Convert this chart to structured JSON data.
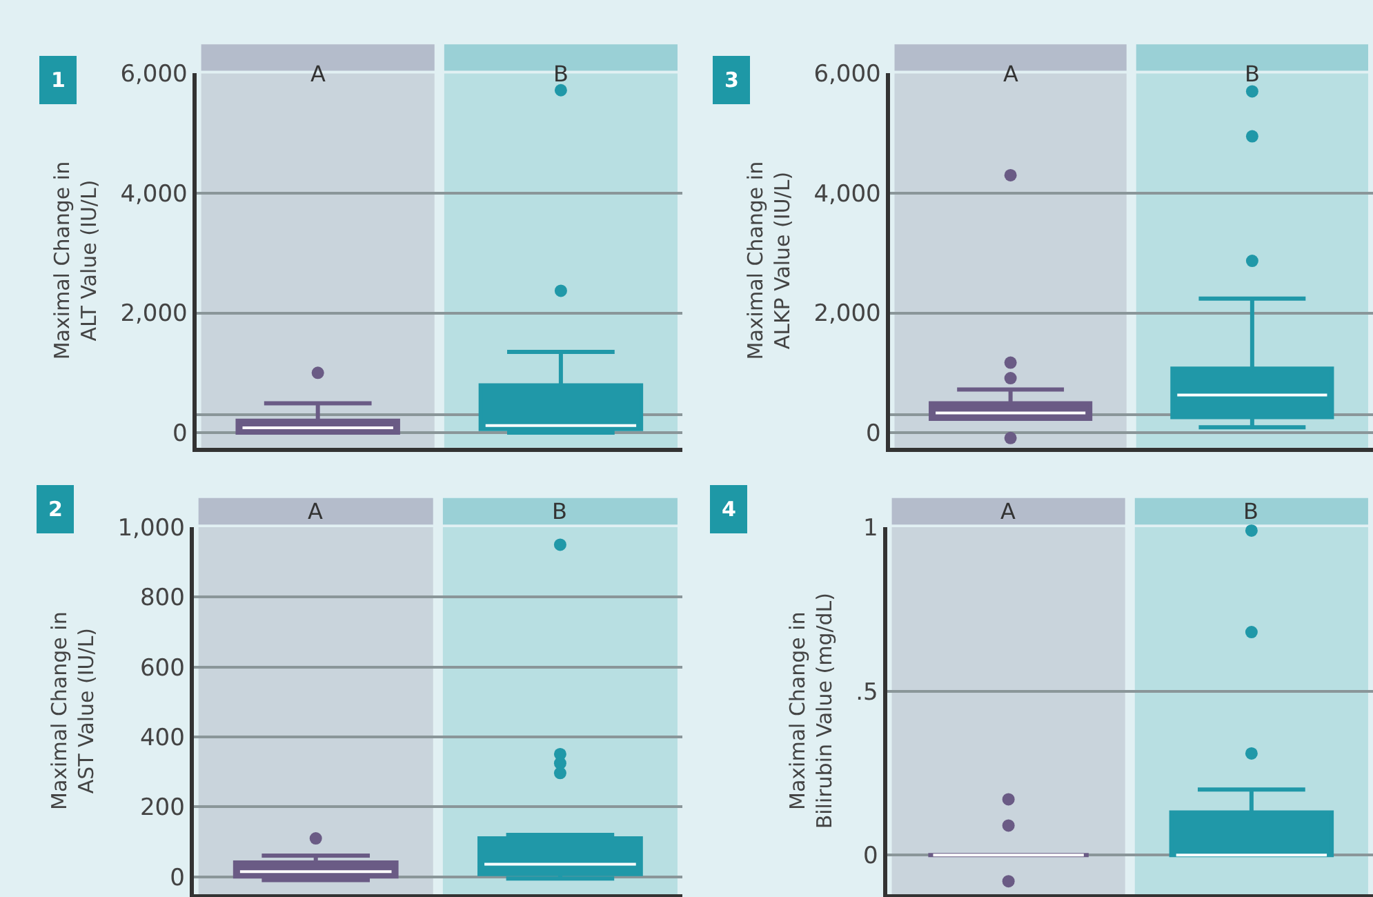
{
  "chart_data": [
    {
      "type": "box",
      "ylabel": "Maximal Change in ALT Value (IU/L)",
      "annotations": [
        "1"
      ],
      "categories": [
        "A",
        "B"
      ],
      "colors": [
        "#6a5b85",
        "#2098a8"
      ],
      "ylim": [
        -250,
        6000
      ],
      "yticks": [
        0,
        {
          "value": 2000,
          "label": "2,000"
        },
        {
          "value": 4000,
          "label": "4,000"
        },
        {
          "value": 6000,
          "label": "6,000"
        }
      ],
      "grid": "y",
      "ref_lines": [
        {
          "axis": "y",
          "value": 300
        }
      ],
      "boxes": [
        {
          "low": 0,
          "q1": 0,
          "median": 80,
          "q3": 200,
          "high": 490,
          "outliers": [
            1000
          ]
        },
        {
          "low": 0,
          "q1": 60,
          "median": 120,
          "q3": 790,
          "high": 1350,
          "outliers": [
            2370,
            5720
          ]
        }
      ]
    },
    {
      "type": "box",
      "ylabel": "Maximal Change in ALKP Value (IU/L)",
      "annotations": [
        "3"
      ],
      "categories": [
        "A",
        "B"
      ],
      "colors": [
        "#6a5b85",
        "#2098a8"
      ],
      "ylim": [
        -250,
        6000
      ],
      "yticks": [
        0,
        {
          "value": 2000,
          "label": "2,000"
        },
        {
          "value": 4000,
          "label": "4,000"
        },
        {
          "value": 6000,
          "label": "6,000"
        }
      ],
      "grid": "y",
      "ref_lines": [
        {
          "axis": "y",
          "value": 300
        }
      ],
      "boxes": [
        {
          "low": 230,
          "q1": 230,
          "median": 330,
          "q3": 490,
          "high": 720,
          "outliers": [
            -90,
            910,
            1170,
            4300
          ]
        },
        {
          "low": 90,
          "q1": 260,
          "median": 630,
          "q3": 1070,
          "high": 2240,
          "outliers": [
            2870,
            4950,
            5700
          ]
        }
      ]
    },
    {
      "type": "box",
      "ylabel": "Maximal Change in AST Value (IU/L)",
      "annotations": [
        "2"
      ],
      "categories": [
        "A",
        "B"
      ],
      "colors": [
        "#6a5b85",
        "#2098a8"
      ],
      "ylim": [
        -50,
        1000
      ],
      "yticks": [
        0,
        200,
        400,
        600,
        800,
        {
          "value": 1000,
          "label": "1,000"
        }
      ],
      "grid": "y",
      "boxes": [
        {
          "low": -9,
          "q1": 1,
          "median": 15,
          "q3": 41,
          "high": 61,
          "outliers": [
            110
          ]
        },
        {
          "low": -5,
          "q1": 8,
          "median": 36,
          "q3": 110,
          "high": 120,
          "outliers": [
            297,
            325,
            351,
            950
          ]
        }
      ]
    },
    {
      "type": "box",
      "ylabel": "Maximal Change in Bilirubin Value (mg/dL)",
      "annotations": [
        "4"
      ],
      "categories": [
        "A",
        "B"
      ],
      "colors": [
        "#6a5b85",
        "#2098a8"
      ],
      "ylim": [
        -0.12,
        1
      ],
      "yticks": [
        0,
        {
          "value": 0.5,
          "label": ".5"
        },
        1
      ],
      "grid": "y",
      "boxes": [
        {
          "low": 0,
          "q1": 0,
          "median": 0,
          "q3": 0,
          "high": 0,
          "outliers": [
            -0.08,
            0.09,
            0.17
          ]
        },
        {
          "low": 0,
          "q1": 0,
          "median": 0,
          "q3": 0.13,
          "high": 0.2,
          "outliers": [
            0.31,
            0.68,
            0.99
          ]
        }
      ]
    }
  ]
}
